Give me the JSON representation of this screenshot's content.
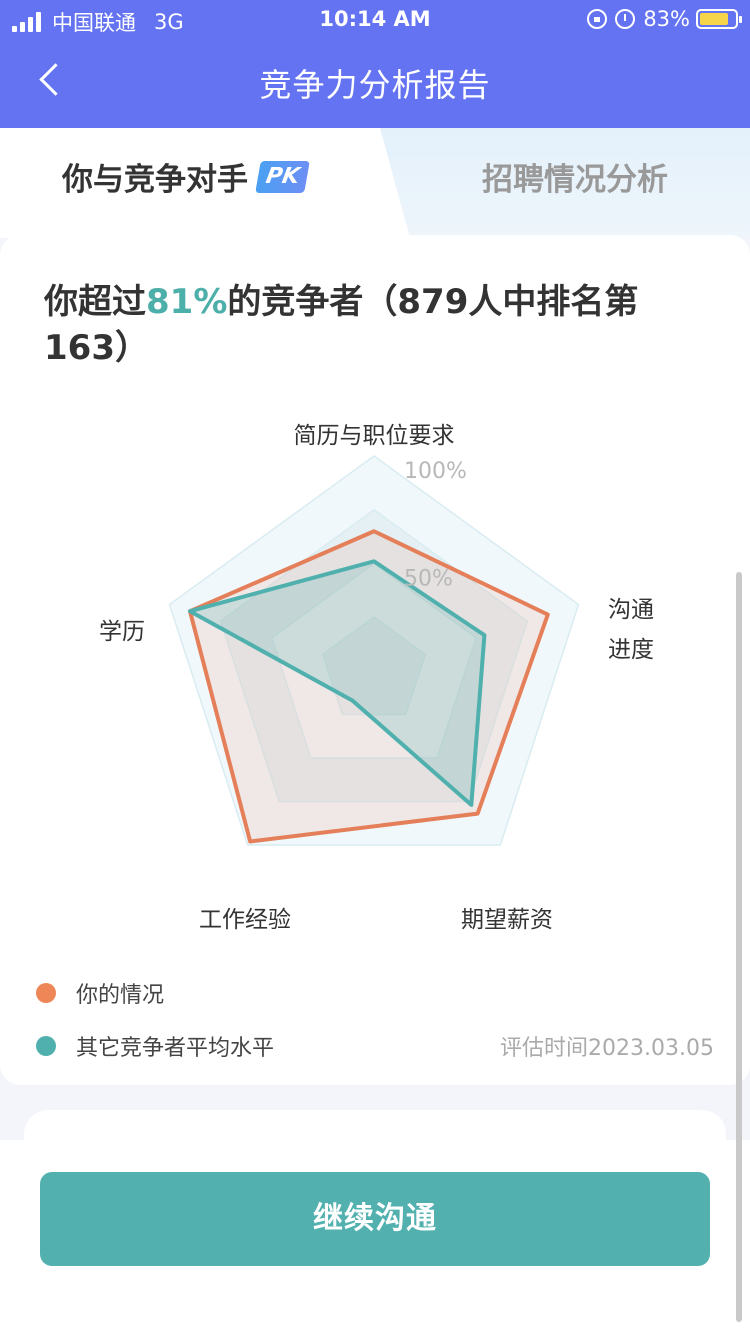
{
  "status_bar": {
    "carrier": "中国联通",
    "network": "3G",
    "time": "10:14 AM",
    "battery_percent": "83%",
    "battery_level": 0.83,
    "icons": [
      "signal-icon",
      "lock-rotation-icon",
      "alarm-icon",
      "battery-icon"
    ]
  },
  "header": {
    "title": "竞争力分析报告",
    "back_icon": "chevron-left-icon"
  },
  "tabs": [
    {
      "label": "你与竞争对手",
      "badge": "PK",
      "active": true
    },
    {
      "label": "招聘情况分析",
      "active": false
    }
  ],
  "headline": {
    "prefix": "你超过",
    "highlight": "81%",
    "suffix": "的竞争者（879人中排名第163）"
  },
  "chart_data": {
    "type": "radar",
    "axes": [
      "简历与职位要求",
      "沟通进度",
      "期望薪资",
      "工作经验",
      "学历"
    ],
    "axis_label_lines": [
      [
        "简历与职位要求"
      ],
      [
        "沟通",
        "进度"
      ],
      [
        "期望薪资"
      ],
      [
        "工作经验"
      ],
      [
        "学历"
      ]
    ],
    "scale_labels": [
      "100%",
      "50%"
    ],
    "max": 100,
    "series": [
      {
        "name": "你的情况",
        "values": [
          65,
          85,
          82,
          98,
          90
        ],
        "color": "#e47f5a"
      },
      {
        "name": "其它竞争者平均水平",
        "values": [
          51,
          54,
          77,
          17,
          90
        ],
        "color": "#4fb0ad"
      }
    ]
  },
  "legend": [
    {
      "label": "你的情况",
      "color": "#ef8657"
    },
    {
      "label": "其它竞争者平均水平",
      "color": "#4fb0ad"
    }
  ],
  "eval_time": "评估时间2023.03.05",
  "continue_button": {
    "label": "继续沟通"
  }
}
